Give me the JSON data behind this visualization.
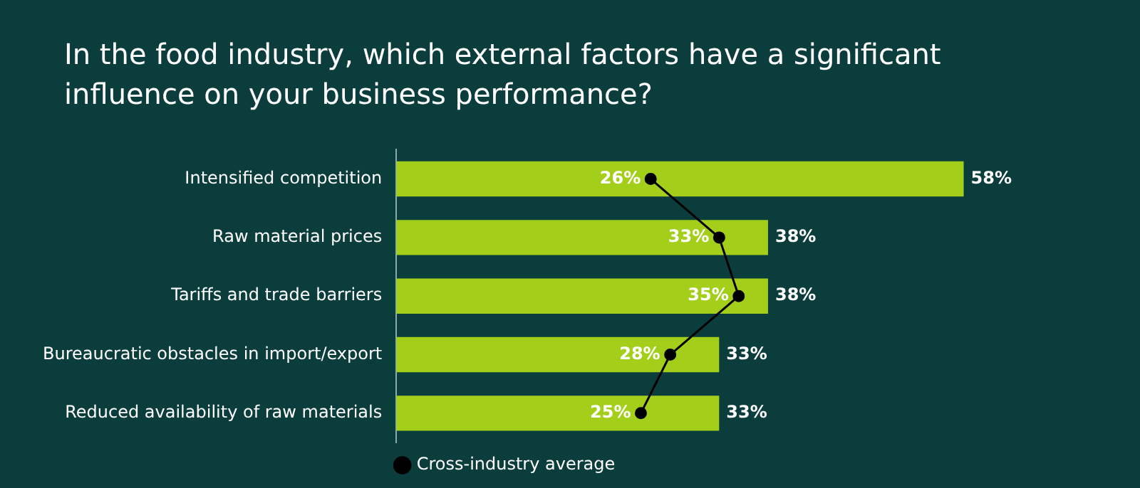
{
  "chart_data": {
    "type": "bar",
    "orientation": "horizontal",
    "title": "In the food industry, which external factors have a significant influence on your business performance?",
    "categories": [
      "Intensified competition",
      "Raw material prices",
      "Tariffs and trade barriers",
      "Bureaucratic obstacles in import/export",
      "Reduced availability of raw materials"
    ],
    "series": [
      {
        "color": "#a3cf1b",
        "values": [
          58,
          38,
          38,
          33,
          33
        ],
        "value_labels": [
          "58%",
          "38%",
          "38%",
          "33%",
          "33%"
        ]
      },
      {
        "type": "line",
        "name": "Cross-industry average",
        "color": "#000000",
        "values": [
          26,
          33,
          35,
          28,
          25
        ],
        "value_labels": [
          "26%",
          "33%",
          "35%",
          "28%",
          "25%"
        ]
      }
    ],
    "marker": "circle",
    "line_style": "solid",
    "legend": "bottom",
    "tick_labels": "y"
  }
}
